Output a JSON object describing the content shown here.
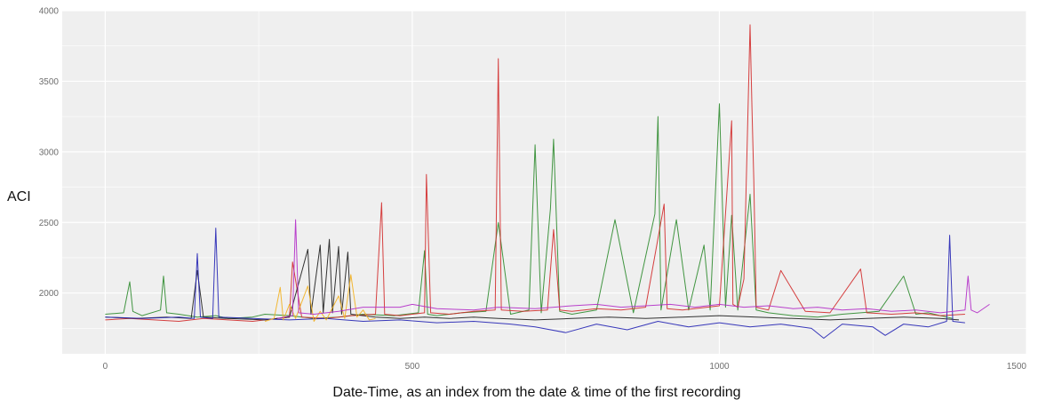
{
  "chart_data": {
    "type": "line",
    "title": "",
    "xlabel": "Date-Time, as an index from the date & time of the first recording",
    "ylabel": "ACI",
    "xlim": [
      -70,
      1500
    ],
    "ylim": [
      1570,
      4000
    ],
    "x_ticks": [
      0,
      500,
      1000,
      1500
    ],
    "x_tick_labels": [
      "0",
      "500",
      "1000",
      "1500"
    ],
    "y_ticks": [
      2000,
      2500,
      3000,
      3500,
      4000
    ],
    "y_tick_labels": [
      "2000",
      "2500",
      "3000",
      "3500",
      "4000"
    ],
    "grid": true,
    "legend": "none",
    "panel_color": "#efefef",
    "grid_color": "#ffffff",
    "series": [
      {
        "color": "#2e8b2e",
        "x": [
          0,
          30,
          40,
          45,
          60,
          90,
          95,
          100,
          120,
          150,
          180,
          200,
          240,
          260,
          300,
          340,
          380,
          420,
          470,
          510,
          520,
          525,
          540,
          580,
          620,
          640,
          660,
          690,
          700,
          710,
          725,
          730,
          740,
          760,
          800,
          830,
          860,
          895,
          900,
          905,
          930,
          950,
          975,
          985,
          1000,
          1010,
          1020,
          1030,
          1050,
          1060,
          1080,
          1120,
          1160,
          1200,
          1260,
          1300,
          1320,
          1340,
          1360,
          1380
        ],
        "y": [
          1850,
          1860,
          2080,
          1870,
          1840,
          1880,
          2120,
          1860,
          1850,
          1830,
          1840,
          1820,
          1830,
          1850,
          1840,
          1820,
          1830,
          1850,
          1840,
          1860,
          2300,
          1850,
          1840,
          1860,
          1870,
          2500,
          1850,
          1880,
          3050,
          1860,
          2600,
          3090,
          1870,
          1850,
          1880,
          2520,
          1860,
          2560,
          3250,
          1880,
          2520,
          1880,
          2340,
          1880,
          3340,
          1900,
          2550,
          1880,
          2700,
          1880,
          1860,
          1840,
          1830,
          1850,
          1870,
          2120,
          1850,
          1860,
          1840,
          1820
        ]
      },
      {
        "color": "#d22b2b",
        "x": [
          0,
          40,
          80,
          120,
          160,
          200,
          240,
          280,
          300,
          305,
          320,
          360,
          400,
          440,
          450,
          455,
          480,
          520,
          523,
          530,
          560,
          600,
          635,
          640,
          645,
          680,
          720,
          730,
          740,
          760,
          800,
          840,
          880,
          910,
          915,
          940,
          980,
          1000,
          1020,
          1022,
          1030,
          1040,
          1050,
          1053,
          1056,
          1060,
          1080,
          1100,
          1140,
          1180,
          1230,
          1240,
          1280,
          1320,
          1360,
          1400
        ],
        "y": [
          1810,
          1820,
          1810,
          1800,
          1820,
          1810,
          1800,
          1820,
          1830,
          2220,
          1830,
          1820,
          1840,
          1850,
          2640,
          1850,
          1840,
          1860,
          2840,
          1860,
          1850,
          1870,
          1880,
          3660,
          1880,
          1870,
          1880,
          2450,
          1880,
          1870,
          1890,
          1880,
          1900,
          2630,
          1890,
          1880,
          1900,
          1910,
          3220,
          1920,
          1900,
          2100,
          3900,
          3320,
          2800,
          1900,
          1880,
          2160,
          1870,
          1860,
          2170,
          1860,
          1850,
          1860,
          1840,
          1850
        ]
      },
      {
        "color": "#1e1e1e",
        "x": [
          0,
          50,
          100,
          140,
          150,
          160,
          200,
          260,
          300,
          330,
          335,
          350,
          355,
          365,
          370,
          380,
          385,
          395,
          400,
          420,
          440,
          480,
          520,
          560,
          600,
          640,
          700,
          760,
          820,
          880,
          940,
          1000,
          1060,
          1120,
          1180,
          1240,
          1300,
          1360,
          1390
        ],
        "y": [
          1830,
          1820,
          1830,
          1820,
          2160,
          1830,
          1820,
          1810,
          1830,
          2310,
          1850,
          2340,
          1860,
          2380,
          1860,
          2330,
          1850,
          2290,
          1850,
          1840,
          1830,
          1820,
          1830,
          1820,
          1830,
          1820,
          1810,
          1820,
          1830,
          1820,
          1830,
          1840,
          1830,
          1820,
          1810,
          1820,
          1830,
          1820,
          1810
        ]
      },
      {
        "color": "#2323b4",
        "x": [
          0,
          60,
          120,
          145,
          150,
          155,
          175,
          180,
          185,
          240,
          300,
          360,
          420,
          480,
          540,
          600,
          660,
          700,
          750,
          800,
          850,
          900,
          950,
          1000,
          1050,
          1100,
          1150,
          1170,
          1200,
          1250,
          1270,
          1300,
          1340,
          1370,
          1375,
          1380,
          1400
        ],
        "y": [
          1830,
          1820,
          1830,
          1820,
          2280,
          1830,
          1820,
          2460,
          1830,
          1820,
          1810,
          1820,
          1800,
          1810,
          1790,
          1800,
          1780,
          1760,
          1720,
          1780,
          1740,
          1800,
          1760,
          1790,
          1760,
          1780,
          1750,
          1680,
          1780,
          1760,
          1700,
          1780,
          1760,
          1800,
          2410,
          1800,
          1790
        ]
      },
      {
        "color": "#f2b01e",
        "x": [
          260,
          275,
          285,
          290,
          300,
          310,
          330,
          340,
          350,
          360,
          380,
          390,
          400,
          410,
          420,
          430,
          440
        ],
        "y": [
          1800,
          1820,
          2040,
          1810,
          1920,
          1820,
          2050,
          1800,
          1870,
          1810,
          1980,
          1820,
          2130,
          1830,
          1880,
          1810,
          1820
        ]
      },
      {
        "color": "#b22cc8",
        "x": [
          280,
          305,
          310,
          315,
          340,
          380,
          420,
          450,
          480,
          500,
          540,
          600,
          640,
          700,
          760,
          800,
          840,
          880,
          920,
          960,
          1000,
          1040,
          1080,
          1120,
          1160,
          1200,
          1240,
          1280,
          1320,
          1360,
          1400,
          1405,
          1410,
          1420,
          1440
        ],
        "y": [
          1820,
          1840,
          2520,
          1860,
          1850,
          1870,
          1900,
          1900,
          1900,
          1920,
          1890,
          1880,
          1900,
          1890,
          1910,
          1920,
          1900,
          1910,
          1920,
          1900,
          1920,
          1900,
          1910,
          1890,
          1900,
          1880,
          1890,
          1870,
          1880,
          1860,
          1880,
          2120,
          1880,
          1860,
          1920
        ]
      }
    ]
  }
}
